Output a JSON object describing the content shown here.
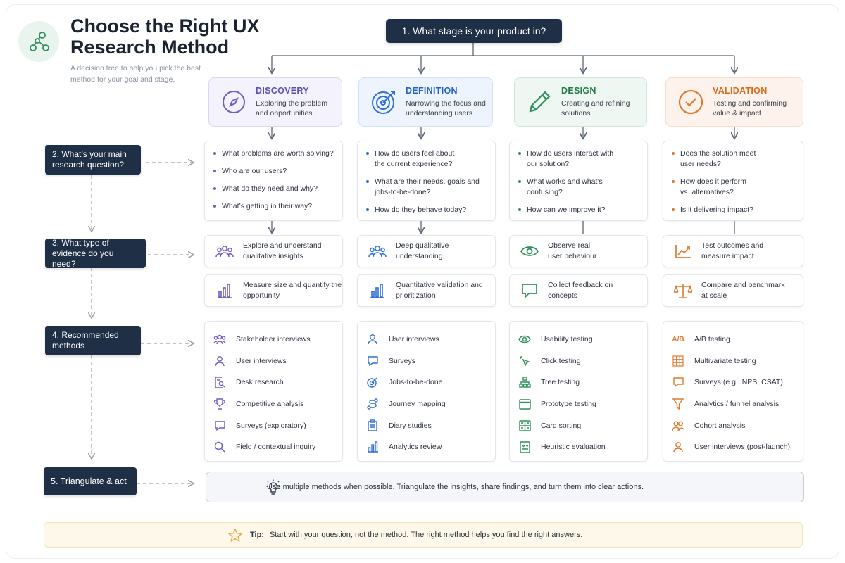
{
  "header": {
    "title": "Choose the Right UX Research Method",
    "subtitle": "A decision tree to help you pick the best method for your goal and stage.",
    "logo_icon": "decision-tree-icon"
  },
  "steps": [
    {
      "label": "1. What stage is your product in?"
    },
    {
      "label": "2. What’s your main research question?"
    },
    {
      "label": "3. What type of evidence do you need?"
    },
    {
      "label": "4. Recommended methods"
    },
    {
      "label": "5. Triangulate & act"
    }
  ],
  "colors": {
    "discovery": "#6b5fc7",
    "definition": "#2f6fd6",
    "design": "#2f8f5b",
    "validation": "#e07a2e",
    "dark": "#1f2f45"
  },
  "stages": [
    {
      "name": "DISCOVERY",
      "description": "Exploring the problem and opportunities",
      "icon": "compass-icon",
      "questions": [
        "What problems are worth solving?",
        "Who are our users?",
        "What do they need and why?",
        "What’s getting in their way?"
      ],
      "evidence": [
        {
          "text": "Explore and understand qualitative insights",
          "icon": "people-icon"
        },
        {
          "text": "Measure size and quantify the opportunity",
          "icon": "bar-chart-icon"
        }
      ],
      "methods": [
        {
          "label": "Stakeholder interviews",
          "icon": "group-icon"
        },
        {
          "label": "User interviews",
          "icon": "user-icon"
        },
        {
          "label": "Desk research",
          "icon": "document-search-icon"
        },
        {
          "label": "Competitive analysis",
          "icon": "trophy-icon"
        },
        {
          "label": "Surveys (exploratory)",
          "icon": "chat-icon"
        },
        {
          "label": "Field / contextual inquiry",
          "icon": "search-icon"
        }
      ]
    },
    {
      "name": "DEFINITION",
      "description": "Narrowing the focus and understanding users",
      "icon": "target-icon",
      "questions": [
        "How do users feel about the current experience?",
        "What are their needs, goals and jobs-to-be-done?",
        "How do they behave today?"
      ],
      "evidence": [
        {
          "text": "Deep qualitative understanding",
          "icon": "people-icon"
        },
        {
          "text": "Quantitative validation and prioritization",
          "icon": "bar-chart-icon"
        }
      ],
      "methods": [
        {
          "label": "User interviews",
          "icon": "user-icon"
        },
        {
          "label": "Surveys",
          "icon": "chat-icon"
        },
        {
          "label": "Jobs-to-be-done",
          "icon": "target-icon"
        },
        {
          "label": "Journey mapping",
          "icon": "route-icon"
        },
        {
          "label": "Diary studies",
          "icon": "clipboard-icon"
        },
        {
          "label": "Analytics review",
          "icon": "bar-chart-icon"
        }
      ]
    },
    {
      "name": "DESIGN",
      "description": "Creating and refining solutions",
      "icon": "pencil-icon",
      "questions": [
        "How do users interact with our solution?",
        "What works and what’s confusing?",
        "How can we improve it?"
      ],
      "evidence": [
        {
          "text": "Observe real user behaviour",
          "icon": "eye-icon"
        },
        {
          "text": "Collect feedback on concepts",
          "icon": "chat-icon"
        }
      ],
      "methods": [
        {
          "label": "Usability testing",
          "icon": "eye-icon"
        },
        {
          "label": "Click testing",
          "icon": "cursor-click-icon"
        },
        {
          "label": "Tree testing",
          "icon": "tree-icon"
        },
        {
          "label": "Prototype testing",
          "icon": "browser-icon"
        },
        {
          "label": "Card sorting",
          "icon": "cards-icon"
        },
        {
          "label": "Heuristic evaluation",
          "icon": "checklist-icon"
        }
      ]
    },
    {
      "name": "VALIDATION",
      "description": "Testing and confirming value & impact",
      "icon": "check-circle-icon",
      "questions": [
        "Does the solution meet user needs?",
        "How does it perform vs. alternatives?",
        "Is it delivering impact?"
      ],
      "evidence": [
        {
          "text": "Test outcomes and measure impact",
          "icon": "line-chart-icon"
        },
        {
          "text": "Compare and benchmark at scale",
          "icon": "scale-icon"
        }
      ],
      "methods": [
        {
          "label": "A/B testing",
          "icon": "ab-icon"
        },
        {
          "label": "Multivariate testing",
          "icon": "grid-icon"
        },
        {
          "label": "Surveys (e.g., NPS, CSAT)",
          "icon": "chat-icon"
        },
        {
          "label": "Analytics / funnel analysis",
          "icon": "funnel-icon"
        },
        {
          "label": "Cohort analysis",
          "icon": "group-icon"
        },
        {
          "label": "User interviews (post-launch)",
          "icon": "user-icon"
        }
      ]
    }
  ],
  "triangulate": {
    "text": "Use multiple methods when possible. Triangulate the insights, share findings, and turn them into clear actions.",
    "icon": "lightbulb-icon"
  },
  "tip": {
    "label": "Tip:",
    "text": "Start with your question, not the method. The right method helps you find the right answers.",
    "icon": "star-icon"
  }
}
